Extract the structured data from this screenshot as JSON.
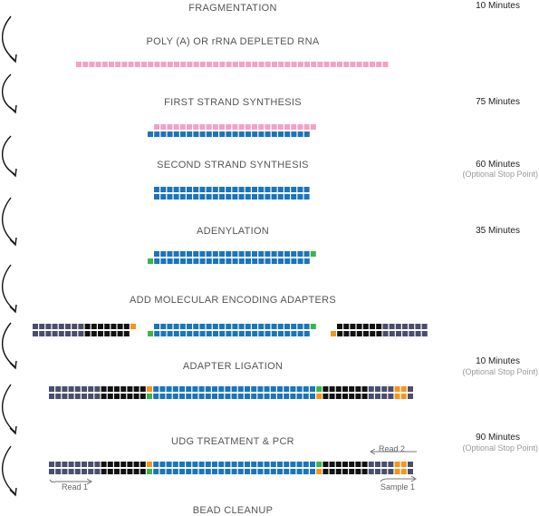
{
  "colors": {
    "rna": "#f2a1c8",
    "dna": "#1a75bc",
    "adapter_gray": "#4a4e6e",
    "adapter_black": "#111111",
    "orange": "#f7941d",
    "green": "#39b54a",
    "arrow": "#111111",
    "read_arrow": "#777777"
  },
  "steps": [
    {
      "label": "FRAGMENTATION",
      "time": "10 Minutes",
      "note": ""
    },
    {
      "label": "POLY (A) OR rRNA DEPLETED RNA",
      "time": "",
      "note": ""
    },
    {
      "label": "FIRST STRAND SYNTHESIS",
      "time": "75 Minutes",
      "note": ""
    },
    {
      "label": "SECOND STRAND SYNTHESIS",
      "time": "60 Minutes",
      "note": "(Optional Stop Point)"
    },
    {
      "label": "ADENYLATION",
      "time": "35 Minutes",
      "note": ""
    },
    {
      "label": "ADD MOLECULAR ENCODING ADAPTERS",
      "time": "",
      "note": ""
    },
    {
      "label": "ADAPTER LIGATION",
      "time": "10 Minutes",
      "note": "(Optional Stop Point)"
    },
    {
      "label": "UDG TREATMENT & PCR",
      "time": "90 Minutes",
      "note": "(Optional Stop Point)"
    },
    {
      "label": "BEAD CLEANUP",
      "time": "",
      "note": ""
    }
  ],
  "reads": {
    "read1": "Read 1",
    "read2": "Read 2",
    "sample1": "Sample 1"
  },
  "icons": [
    "curved-step-arrow-icon",
    "read-arrow-icon"
  ]
}
